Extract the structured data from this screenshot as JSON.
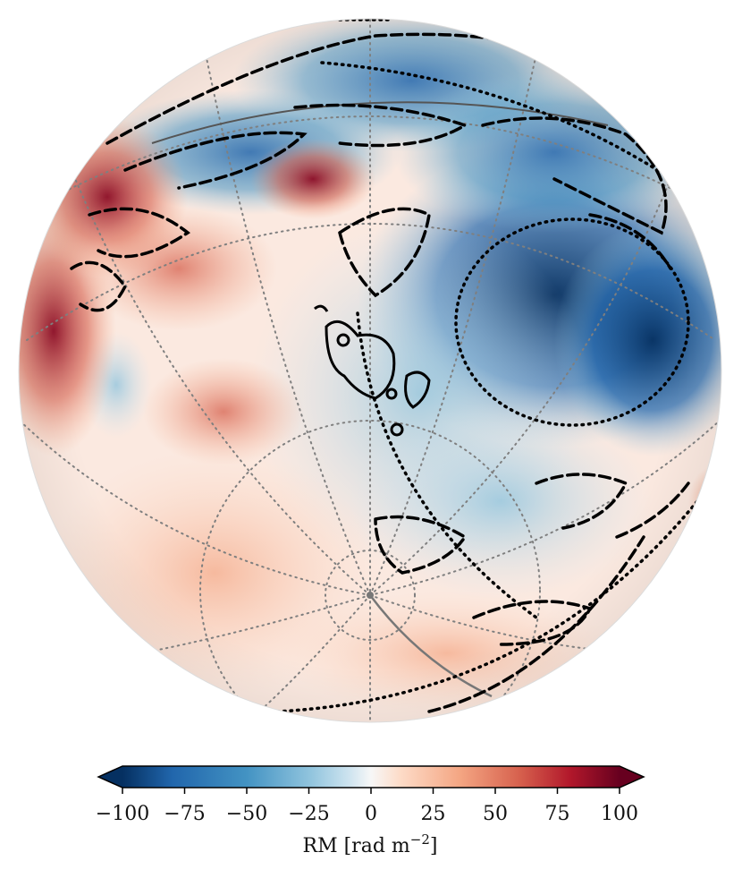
{
  "map": {
    "projection": "orthographic",
    "colormap": "RdBu_r",
    "contour_styles": [
      "solid",
      "dashed",
      "dotted"
    ],
    "graticule": "dotted-grey",
    "colors": {
      "deep_blue": "#053061",
      "mid_blue": "#2166ac",
      "light_blue": "#92c5de",
      "near_white": "#f7f7f7",
      "light_red": "#f4a582",
      "mid_red": "#d6604d",
      "deep_red": "#67001f"
    }
  },
  "colorbar": {
    "label_prefix": "RM [rad m",
    "label_exponent": "−2",
    "label_suffix": "]",
    "min": -100,
    "max": 100,
    "extend": "both",
    "ticks": [
      {
        "value": -100,
        "label": "−100"
      },
      {
        "value": -75,
        "label": "−75"
      },
      {
        "value": -50,
        "label": "−50"
      },
      {
        "value": -25,
        "label": "−25"
      },
      {
        "value": 0,
        "label": "0"
      },
      {
        "value": 25,
        "label": "25"
      },
      {
        "value": 50,
        "label": "50"
      },
      {
        "value": 75,
        "label": "75"
      },
      {
        "value": 100,
        "label": "100"
      }
    ]
  }
}
